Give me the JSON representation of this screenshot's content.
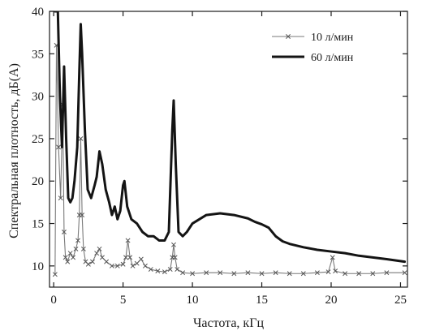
{
  "chart_data": {
    "type": "line",
    "xlabel": "Частота, кГц",
    "ylabel": "Спектральная плотность, дБ(А)",
    "xlim": [
      -0.3,
      25.5
    ],
    "ylim": [
      7.5,
      40
    ],
    "x_ticks": [
      0,
      5,
      10,
      15,
      20,
      25
    ],
    "x_tick_labels": [
      "0",
      "5",
      "10",
      "15",
      "20",
      "25"
    ],
    "y_ticks": [
      10,
      15,
      20,
      25,
      30,
      35,
      40
    ],
    "y_tick_labels": [
      "10",
      "15",
      "20",
      "25",
      "30",
      "35",
      "40"
    ],
    "grid": false,
    "legend_position": "top-right",
    "series": [
      {
        "name": "10 л/мин",
        "style": "thin-x-markers",
        "color": "#7a7a7a",
        "points": [
          [
            0.1,
            9
          ],
          [
            0.2,
            36
          ],
          [
            0.35,
            24
          ],
          [
            0.5,
            18
          ],
          [
            0.65,
            29
          ],
          [
            0.75,
            14
          ],
          [
            0.85,
            11
          ],
          [
            1.0,
            10.5
          ],
          [
            1.2,
            11.5
          ],
          [
            1.4,
            11
          ],
          [
            1.6,
            12
          ],
          [
            1.75,
            13
          ],
          [
            1.85,
            16
          ],
          [
            1.95,
            25
          ],
          [
            2.05,
            16
          ],
          [
            2.15,
            12
          ],
          [
            2.3,
            10.5
          ],
          [
            2.5,
            10.2
          ],
          [
            2.8,
            10.5
          ],
          [
            3.1,
            11.5
          ],
          [
            3.3,
            12
          ],
          [
            3.5,
            11
          ],
          [
            3.8,
            10.5
          ],
          [
            4.2,
            10
          ],
          [
            4.6,
            10
          ],
          [
            5.0,
            10.2
          ],
          [
            5.2,
            11
          ],
          [
            5.35,
            13
          ],
          [
            5.5,
            11
          ],
          [
            5.7,
            10
          ],
          [
            6.0,
            10.3
          ],
          [
            6.3,
            10.8
          ],
          [
            6.6,
            10
          ],
          [
            7.0,
            9.6
          ],
          [
            7.5,
            9.4
          ],
          [
            8.0,
            9.3
          ],
          [
            8.4,
            9.6
          ],
          [
            8.55,
            11
          ],
          [
            8.65,
            12.5
          ],
          [
            8.75,
            11
          ],
          [
            8.9,
            9.6
          ],
          [
            9.3,
            9.2
          ],
          [
            10,
            9.1
          ],
          [
            11,
            9.2
          ],
          [
            12,
            9.2
          ],
          [
            13,
            9.1
          ],
          [
            14,
            9.2
          ],
          [
            15,
            9.1
          ],
          [
            16,
            9.2
          ],
          [
            17,
            9.1
          ],
          [
            18,
            9.1
          ],
          [
            19,
            9.2
          ],
          [
            19.8,
            9.3
          ],
          [
            20.1,
            11
          ],
          [
            20.3,
            9.4
          ],
          [
            21,
            9.1
          ],
          [
            22,
            9.1
          ],
          [
            23,
            9.1
          ],
          [
            24,
            9.2
          ],
          [
            25.3,
            9.2
          ]
        ]
      },
      {
        "name": "60 л/мин",
        "style": "thick-line",
        "color": "#141414",
        "points": [
          [
            0.1,
            40
          ],
          [
            0.3,
            40
          ],
          [
            0.45,
            30
          ],
          [
            0.6,
            24
          ],
          [
            0.75,
            33.5
          ],
          [
            0.9,
            25
          ],
          [
            1.05,
            18
          ],
          [
            1.2,
            17.5
          ],
          [
            1.35,
            18
          ],
          [
            1.5,
            20
          ],
          [
            1.7,
            24
          ],
          [
            1.85,
            33
          ],
          [
            1.95,
            38.5
          ],
          [
            2.05,
            35
          ],
          [
            2.25,
            26
          ],
          [
            2.45,
            19
          ],
          [
            2.7,
            18
          ],
          [
            2.95,
            19.5
          ],
          [
            3.1,
            20.5
          ],
          [
            3.3,
            23.5
          ],
          [
            3.5,
            22
          ],
          [
            3.75,
            19
          ],
          [
            4.0,
            17.5
          ],
          [
            4.2,
            16
          ],
          [
            4.4,
            17
          ],
          [
            4.6,
            15.5
          ],
          [
            4.8,
            16.5
          ],
          [
            5.0,
            19.5
          ],
          [
            5.1,
            20
          ],
          [
            5.3,
            17
          ],
          [
            5.6,
            15.5
          ],
          [
            6.0,
            15
          ],
          [
            6.4,
            14
          ],
          [
            6.8,
            13.5
          ],
          [
            7.2,
            13.5
          ],
          [
            7.6,
            13
          ],
          [
            8.0,
            13
          ],
          [
            8.3,
            14
          ],
          [
            8.55,
            26
          ],
          [
            8.65,
            29.5
          ],
          [
            8.8,
            22
          ],
          [
            9.0,
            14
          ],
          [
            9.3,
            13.5
          ],
          [
            9.6,
            14
          ],
          [
            10.0,
            15
          ],
          [
            10.5,
            15.5
          ],
          [
            11.0,
            16
          ],
          [
            12.0,
            16.2
          ],
          [
            13.0,
            16
          ],
          [
            14.0,
            15.6
          ],
          [
            14.5,
            15.2
          ],
          [
            15.0,
            14.9
          ],
          [
            15.5,
            14.5
          ],
          [
            16.0,
            13.5
          ],
          [
            16.5,
            12.9
          ],
          [
            17.0,
            12.6
          ],
          [
            18.0,
            12.2
          ],
          [
            19.0,
            11.9
          ],
          [
            20.0,
            11.7
          ],
          [
            21.0,
            11.5
          ],
          [
            22.0,
            11.2
          ],
          [
            23.0,
            11
          ],
          [
            24.0,
            10.8
          ],
          [
            25.3,
            10.5
          ]
        ]
      }
    ]
  }
}
